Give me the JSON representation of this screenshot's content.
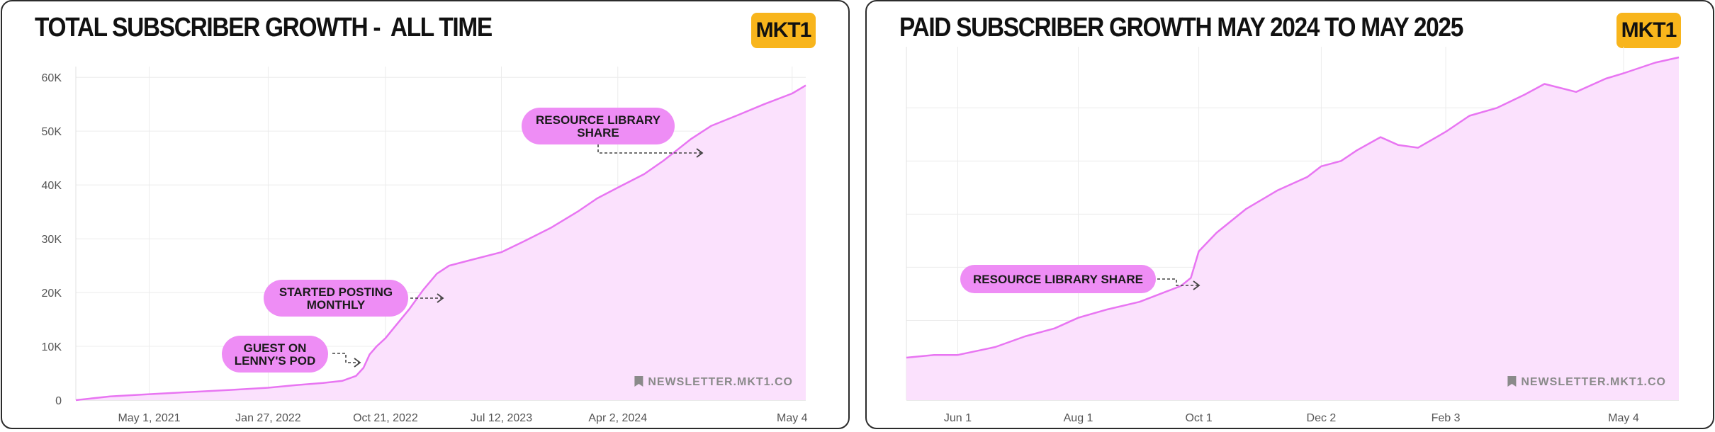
{
  "colors": {
    "line": "#e875f2",
    "fill": "#fbe1fd",
    "pill": "#ee8df5",
    "logo_bg": "#f8b51c",
    "grid": "#ececec"
  },
  "chart_data": [
    {
      "type": "area",
      "title": "TOTAL SUBSCRIBER GROWTH -  ALL TIME",
      "logo": "MKT1",
      "watermark": "NEWSLETTER.MKT1.CO",
      "watermark_icon": "bookmark-icon",
      "grid": true,
      "x_tick_labels": [
        "May 1, 2021",
        "Jan 27, 2022",
        "Oct 21, 2022",
        "Jul 12, 2023",
        "Apr 2, 2024",
        "May 4"
      ],
      "y_tick_labels": [
        "0",
        "10K",
        "20K",
        "30K",
        "40K",
        "50K",
        "60K"
      ],
      "ylim": [
        0,
        62000
      ],
      "x": [
        "2020-11-15",
        "2021-02-01",
        "2021-05-01",
        "2021-08-01",
        "2021-11-01",
        "2022-01-27",
        "2022-04-01",
        "2022-06-01",
        "2022-07-15",
        "2022-08-15",
        "2022-09-01",
        "2022-09-15",
        "2022-10-01",
        "2022-10-21",
        "2022-11-15",
        "2022-12-15",
        "2023-01-15",
        "2023-02-15",
        "2023-03-15",
        "2023-05-01",
        "2023-07-12",
        "2023-09-01",
        "2023-11-01",
        "2024-01-01",
        "2024-02-15",
        "2024-04-02",
        "2024-06-01",
        "2024-07-15",
        "2024-08-15",
        "2024-09-15",
        "2024-11-01",
        "2025-01-01",
        "2025-03-01",
        "2025-05-04",
        "2025-06-04"
      ],
      "series": [
        {
          "values": [
            0,
            700,
            1100,
            1500,
            1900,
            2300,
            2800,
            3200,
            3600,
            4500,
            6000,
            8500,
            10000,
            11500,
            14000,
            17000,
            20500,
            23500,
            25000,
            26000,
            27500,
            29500,
            32000,
            35000,
            37500,
            39500,
            42000,
            44500,
            46500,
            48500,
            51000,
            53000,
            55000,
            57000,
            58500
          ]
        }
      ],
      "annotations": [
        {
          "text": [
            "GUEST ON",
            "LENNY'S POD"
          ],
          "x": "2022-09-15"
        },
        {
          "text": [
            "STARTED POSTING",
            "MONTHLY"
          ],
          "x": "2023-01-20"
        },
        {
          "text": [
            "RESOURCE LIBRARY",
            "SHARE"
          ],
          "x": "2024-07-01"
        }
      ]
    },
    {
      "type": "area",
      "title": "PAID SUBSCRIBER GROWTH MAY 2024 TO MAY 2025",
      "logo": "MKT1",
      "watermark": "NEWSLETTER.MKT1.CO",
      "watermark_icon": "bookmark-icon",
      "grid": true,
      "x_tick_labels": [
        "Jun 1",
        "Aug 1",
        "Oct 1",
        "Dec 2",
        "Feb 3",
        "May 4"
      ],
      "y_tick_labels": [],
      "x": [
        "2024-05-06",
        "2024-05-20",
        "2024-06-01",
        "2024-06-20",
        "2024-07-05",
        "2024-07-20",
        "2024-08-01",
        "2024-08-15",
        "2024-09-01",
        "2024-09-15",
        "2024-09-22",
        "2024-09-27",
        "2024-10-01",
        "2024-10-10",
        "2024-10-25",
        "2024-11-10",
        "2024-11-25",
        "2024-12-02",
        "2024-12-12",
        "2024-12-20",
        "2025-01-01",
        "2025-01-10",
        "2025-01-20",
        "2025-02-03",
        "2025-02-15",
        "2025-03-01",
        "2025-03-15",
        "2025-03-25",
        "2025-04-10",
        "2025-04-25",
        "2025-05-04",
        "2025-05-20",
        "2025-06-01"
      ],
      "series": [
        {
          "values": [
            6,
            7,
            7,
            10,
            14,
            17,
            21,
            24,
            27,
            31,
            33,
            36,
            46,
            53,
            62,
            69,
            74,
            78,
            80,
            84,
            89,
            86,
            85,
            91,
            97,
            100,
            105,
            109,
            106,
            111,
            113,
            117,
            119
          ]
        }
      ],
      "annotations": [
        {
          "text": [
            "RESOURCE LIBRARY SHARE"
          ],
          "x": "2024-09-27"
        }
      ]
    }
  ]
}
